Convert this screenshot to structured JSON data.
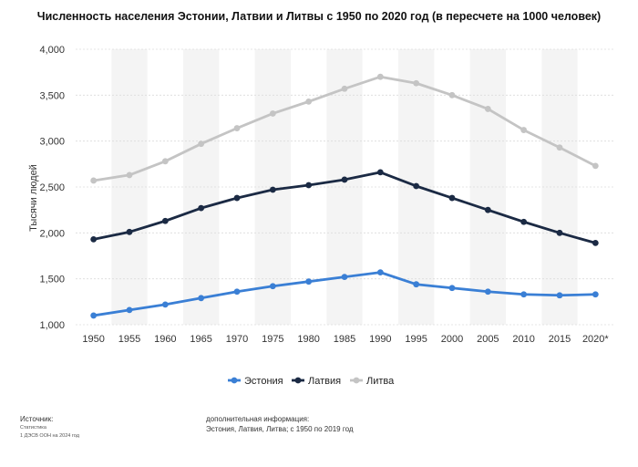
{
  "chart_data": {
    "type": "line",
    "title": "Численность населения Эстонии, Латвии и Литвы с 1950 по 2020 год (в пересчете на 1000 человек)",
    "ylabel": "Тысячи людей",
    "xlabel": "",
    "categories": [
      "1950",
      "1955",
      "1960",
      "1965",
      "1970",
      "1975",
      "1980",
      "1985",
      "1990",
      "1995",
      "2000",
      "2005",
      "2010",
      "2015",
      "2020*"
    ],
    "ylim": [
      1000,
      4000
    ],
    "yticks": [
      1000,
      1500,
      2000,
      2500,
      3000,
      3500,
      4000
    ],
    "ytick_labels": [
      "1,000",
      "1,500",
      "2,000",
      "2,500",
      "3,000",
      "3,500",
      "4,000"
    ],
    "legend_position": "bottom-center",
    "series": [
      {
        "name": "Эстония",
        "color": "#3a7fd5",
        "values": [
          1100,
          1160,
          1220,
          1290,
          1360,
          1420,
          1470,
          1520,
          1570,
          1440,
          1400,
          1360,
          1330,
          1320,
          1330
        ]
      },
      {
        "name": "Латвия",
        "color": "#1b2a44",
        "values": [
          1930,
          2010,
          2130,
          2270,
          2380,
          2470,
          2520,
          2580,
          2660,
          2510,
          2380,
          2250,
          2120,
          2000,
          1890
        ]
      },
      {
        "name": "Литва",
        "color": "#c4c4c4",
        "values": [
          2570,
          2630,
          2780,
          2970,
          3140,
          3300,
          3430,
          3570,
          3700,
          3630,
          3500,
          3350,
          3120,
          2930,
          2730
        ]
      }
    ]
  },
  "footer": {
    "source_title": "Источник:",
    "source_line1": "Статистика",
    "source_line2": "1   ДЭСВ ООН на 2024 год",
    "info_title": "дополнительная информация:",
    "info_text": "Эстония, Латвия, Литва; с 1950 по 2019 год"
  }
}
